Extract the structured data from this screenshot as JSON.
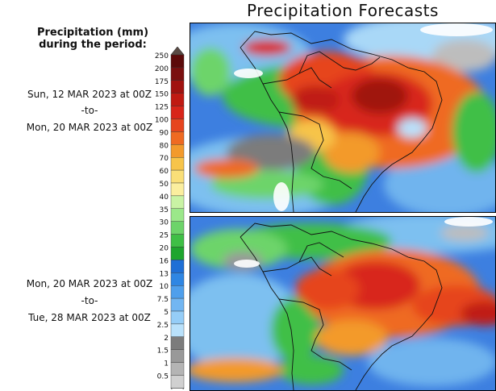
{
  "title": "Precipitation Forecasts",
  "legend": {
    "title_line1": "Precipitation (mm)",
    "title_line2": "during the period:",
    "levels": [
      "250",
      "200",
      "175",
      "150",
      "125",
      "100",
      "90",
      "80",
      "70",
      "60",
      "50",
      "40",
      "35",
      "30",
      "25",
      "20",
      "16",
      "13",
      "10",
      "7.5",
      "5",
      "2.5",
      "2",
      "1.5",
      "1",
      "0.5"
    ],
    "colors": [
      "#5c0a0a",
      "#7a0f0f",
      "#a0120f",
      "#c01a12",
      "#d8251a",
      "#e6451f",
      "#ef6a22",
      "#f39a2c",
      "#f7c44a",
      "#fadf78",
      "#fbee9e",
      "#c9f3a4",
      "#9be88a",
      "#6dd46a",
      "#3fbf46",
      "#1ea52e",
      "#1f6fd6",
      "#2f86e3",
      "#4f9fec",
      "#72b6f2",
      "#95cdf7",
      "#b9e1fb",
      "#7c7c7c",
      "#999999",
      "#b4b4b4",
      "#d0d0d0"
    ],
    "top_arrow_color": "#5a4a44"
  },
  "periods": [
    {
      "start": "Sun, 12 MAR 2023 at 00Z",
      "sep": "-to-",
      "end": "Mon, 20 MAR 2023 at 00Z"
    },
    {
      "start": "Mon, 20 MAR 2023 at 00Z",
      "sep": "-to-",
      "end": "Tue, 28 MAR 2023 at 00Z"
    }
  ]
}
